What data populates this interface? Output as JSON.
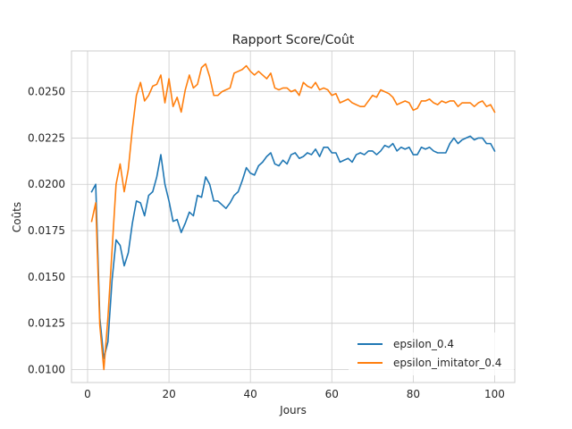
{
  "chart_data": {
    "type": "line",
    "title": "Rapport Score/Coût",
    "xlabel": "Jours",
    "ylabel": "Coûts",
    "xlim": [
      -3.95,
      104.95
    ],
    "ylim": [
      0.0093,
      0.0272
    ],
    "xticks": [
      0,
      20,
      40,
      60,
      80,
      100
    ],
    "yticks": [
      0.01,
      0.0125,
      0.015,
      0.0175,
      0.02,
      0.0225,
      0.025
    ],
    "ytick_labels": [
      "0.0100",
      "0.0125",
      "0.0150",
      "0.0175",
      "0.0200",
      "0.0225",
      "0.0250"
    ],
    "grid": true,
    "legend_position": "lower-right",
    "series": [
      {
        "name": "epsilon_0.4",
        "color": "#1f77b4",
        "x": [
          1,
          2,
          3,
          4,
          5,
          6,
          7,
          8,
          9,
          10,
          11,
          12,
          13,
          14,
          15,
          16,
          17,
          18,
          19,
          20,
          21,
          22,
          23,
          24,
          25,
          26,
          27,
          28,
          29,
          30,
          31,
          32,
          33,
          34,
          35,
          36,
          37,
          38,
          39,
          40,
          41,
          42,
          43,
          44,
          45,
          46,
          47,
          48,
          49,
          50,
          51,
          52,
          53,
          54,
          55,
          56,
          57,
          58,
          59,
          60,
          61,
          62,
          63,
          64,
          65,
          66,
          67,
          68,
          69,
          70,
          71,
          72,
          73,
          74,
          75,
          76,
          77,
          78,
          79,
          80,
          81,
          82,
          83,
          84,
          85,
          86,
          87,
          88,
          89,
          90,
          91,
          92,
          93,
          94,
          95,
          96,
          97,
          98,
          99,
          100
        ],
        "values": [
          0.0196,
          0.02,
          0.0128,
          0.0106,
          0.0115,
          0.0148,
          0.017,
          0.0167,
          0.0156,
          0.0163,
          0.0179,
          0.0191,
          0.019,
          0.0183,
          0.0194,
          0.0196,
          0.0204,
          0.0216,
          0.02,
          0.0191,
          0.018,
          0.0181,
          0.0174,
          0.0179,
          0.0185,
          0.0183,
          0.0194,
          0.0193,
          0.0204,
          0.02,
          0.0191,
          0.0191,
          0.0189,
          0.0187,
          0.019,
          0.0194,
          0.0196,
          0.0202,
          0.0209,
          0.0206,
          0.0205,
          0.021,
          0.0212,
          0.0215,
          0.0217,
          0.0211,
          0.021,
          0.0213,
          0.0211,
          0.0216,
          0.0217,
          0.0214,
          0.0215,
          0.0217,
          0.0216,
          0.0219,
          0.0215,
          0.022,
          0.022,
          0.0217,
          0.0217,
          0.0212,
          0.0213,
          0.0214,
          0.0212,
          0.0216,
          0.0217,
          0.0216,
          0.0218,
          0.0218,
          0.0216,
          0.0218,
          0.0221,
          0.022,
          0.0222,
          0.0218,
          0.022,
          0.0219,
          0.022,
          0.0216,
          0.0216,
          0.022,
          0.0219,
          0.022,
          0.0218,
          0.0217,
          0.0217,
          0.0217,
          0.0222,
          0.0225,
          0.0222,
          0.0224,
          0.0225,
          0.0226,
          0.0224,
          0.0225,
          0.0225,
          0.0222,
          0.0222,
          0.0218
        ]
      },
      {
        "name": "epsilon_imitator_0.4",
        "color": "#ff7f0e",
        "x": [
          1,
          2,
          3,
          4,
          5,
          6,
          7,
          8,
          9,
          10,
          11,
          12,
          13,
          14,
          15,
          16,
          17,
          18,
          19,
          20,
          21,
          22,
          23,
          24,
          25,
          26,
          27,
          28,
          29,
          30,
          31,
          32,
          33,
          34,
          35,
          36,
          37,
          38,
          39,
          40,
          41,
          42,
          43,
          44,
          45,
          46,
          47,
          48,
          49,
          50,
          51,
          52,
          53,
          54,
          55,
          56,
          57,
          58,
          59,
          60,
          61,
          62,
          63,
          64,
          65,
          66,
          67,
          68,
          69,
          70,
          71,
          72,
          73,
          74,
          75,
          76,
          77,
          78,
          79,
          80,
          81,
          82,
          83,
          84,
          85,
          86,
          87,
          88,
          89,
          90,
          91,
          92,
          93,
          94,
          95,
          96,
          97,
          98,
          99,
          100
        ],
        "values": [
          0.018,
          0.019,
          0.0124,
          0.01,
          0.0128,
          0.0164,
          0.02,
          0.0211,
          0.0196,
          0.0208,
          0.023,
          0.0248,
          0.0255,
          0.0245,
          0.0248,
          0.0253,
          0.0254,
          0.0259,
          0.0244,
          0.0257,
          0.0242,
          0.0247,
          0.0239,
          0.0251,
          0.0259,
          0.0252,
          0.0254,
          0.0263,
          0.0265,
          0.0258,
          0.0248,
          0.0248,
          0.025,
          0.0251,
          0.0252,
          0.026,
          0.0261,
          0.0262,
          0.0264,
          0.0261,
          0.0259,
          0.0261,
          0.0259,
          0.0257,
          0.026,
          0.0252,
          0.0251,
          0.0252,
          0.0252,
          0.025,
          0.0251,
          0.0248,
          0.0255,
          0.0253,
          0.0252,
          0.0255,
          0.0251,
          0.0252,
          0.0251,
          0.0248,
          0.0249,
          0.0244,
          0.0245,
          0.0246,
          0.0244,
          0.0243,
          0.0242,
          0.0242,
          0.0245,
          0.0248,
          0.0247,
          0.0251,
          0.025,
          0.0249,
          0.0247,
          0.0243,
          0.0244,
          0.0245,
          0.0244,
          0.024,
          0.0241,
          0.0245,
          0.0245,
          0.0246,
          0.0244,
          0.0243,
          0.0245,
          0.0244,
          0.0245,
          0.0245,
          0.0242,
          0.0244,
          0.0244,
          0.0244,
          0.0242,
          0.0244,
          0.0245,
          0.0242,
          0.0243,
          0.0239
        ]
      }
    ]
  }
}
